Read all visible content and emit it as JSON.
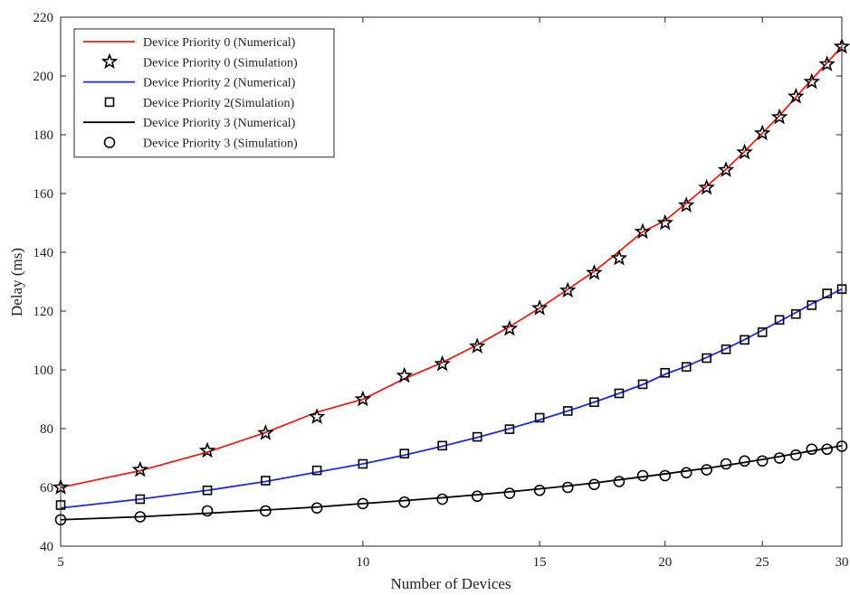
{
  "chart_data": {
    "type": "line",
    "xscale": "log",
    "xlabel": "Number of Devices",
    "ylabel": "Delay (ms)",
    "xlim": [
      5,
      30
    ],
    "ylim": [
      40,
      220
    ],
    "xticks": [
      5,
      10,
      15,
      20,
      25,
      30
    ],
    "yticks": [
      40,
      60,
      80,
      100,
      120,
      140,
      160,
      180,
      200,
      220
    ],
    "grid": false,
    "legend_position": "top-left",
    "series": [
      {
        "name": "Device Priority 0 (Numerical)",
        "kind": "line",
        "color": "#e8231c",
        "x": [
          5,
          6,
          7,
          8,
          9,
          10,
          11,
          12,
          13,
          14,
          15,
          16,
          17,
          18,
          19,
          20,
          21,
          22,
          23,
          24,
          25,
          26,
          27,
          28,
          29,
          30
        ],
        "y": [
          60,
          65.7,
          72,
          78.7,
          85.6,
          90,
          97,
          102.5,
          108.5,
          114.7,
          121,
          127.4,
          133.5,
          140.3,
          147,
          150.8,
          156.7,
          162.5,
          168.2,
          174.3,
          180.5,
          186.5,
          192.8,
          198.8,
          204.5,
          210
        ]
      },
      {
        "name": "Device Priority 0 (Simulation)",
        "kind": "marker",
        "marker": "star",
        "color": "#000000",
        "x": [
          5,
          6,
          7,
          8,
          9,
          10,
          11,
          12,
          13,
          14,
          15,
          16,
          17,
          18,
          19,
          20,
          21,
          22,
          23,
          24,
          25,
          26,
          27,
          28,
          29,
          30
        ],
        "y": [
          60,
          66,
          72.5,
          78.5,
          84,
          90,
          98,
          102,
          108,
          114,
          121,
          127,
          133,
          138,
          147,
          150,
          156,
          162,
          168,
          174,
          180.5,
          186,
          193,
          198,
          204,
          210
        ]
      },
      {
        "name": "Device Priority 2 (Numerical)",
        "kind": "line",
        "color": "#1f2bd6",
        "x": [
          5,
          6,
          7,
          8,
          9,
          10,
          11,
          12,
          13,
          14,
          15,
          16,
          17,
          18,
          19,
          20,
          21,
          22,
          23,
          24,
          25,
          26,
          27,
          28,
          29,
          30
        ],
        "y": [
          53,
          56,
          59,
          62,
          65.2,
          68,
          71,
          74,
          77,
          80,
          83,
          86,
          89,
          92,
          95,
          98.5,
          101.2,
          104.2,
          107.2,
          110.3,
          113.5,
          116.5,
          119.5,
          122.5,
          125,
          127.5
        ]
      },
      {
        "name": "Device Priority 2(Simulation)",
        "kind": "marker",
        "marker": "square",
        "color": "#000000",
        "x": [
          5,
          6,
          7,
          8,
          9,
          10,
          11,
          12,
          13,
          14,
          15,
          16,
          17,
          18,
          19,
          20,
          21,
          22,
          23,
          24,
          25,
          26,
          27,
          28,
          29,
          30
        ],
        "y": [
          54,
          56,
          59,
          62.3,
          65.8,
          68,
          71.5,
          74.2,
          77.2,
          79.8,
          83.7,
          86,
          89,
          92,
          95.1,
          99,
          101,
          104,
          107,
          110.2,
          112.8,
          117,
          119,
          122,
          126,
          127.5
        ]
      },
      {
        "name": "Device Priority 3 (Numerical)",
        "kind": "line",
        "color": "#000000",
        "x": [
          5,
          6,
          7,
          8,
          9,
          10,
          11,
          12,
          13,
          14,
          15,
          16,
          17,
          18,
          19,
          20,
          21,
          22,
          23,
          24,
          25,
          26,
          27,
          28,
          29,
          30
        ],
        "y": [
          49,
          50,
          51.2,
          52.3,
          53.3,
          54.5,
          55.5,
          56.5,
          57.5,
          58.5,
          59.5,
          60.5,
          61.5,
          62.6,
          63.6,
          64.6,
          65.6,
          66.5,
          67.5,
          68.5,
          69.5,
          70.5,
          71.5,
          72.4,
          73.3,
          74.2
        ]
      },
      {
        "name": "Device Priority 3 (Simulation)",
        "kind": "marker",
        "marker": "circle",
        "color": "#000000",
        "x": [
          5,
          6,
          7,
          8,
          9,
          10,
          11,
          12,
          13,
          14,
          15,
          16,
          17,
          18,
          19,
          20,
          21,
          22,
          23,
          24,
          25,
          26,
          27,
          28,
          29,
          30
        ],
        "y": [
          49,
          50,
          52,
          52,
          53,
          54.5,
          55,
          56,
          57,
          58,
          59,
          60,
          61,
          62,
          64,
          64,
          65,
          66,
          68,
          69,
          69,
          70,
          71,
          73,
          73,
          74
        ]
      }
    ]
  }
}
